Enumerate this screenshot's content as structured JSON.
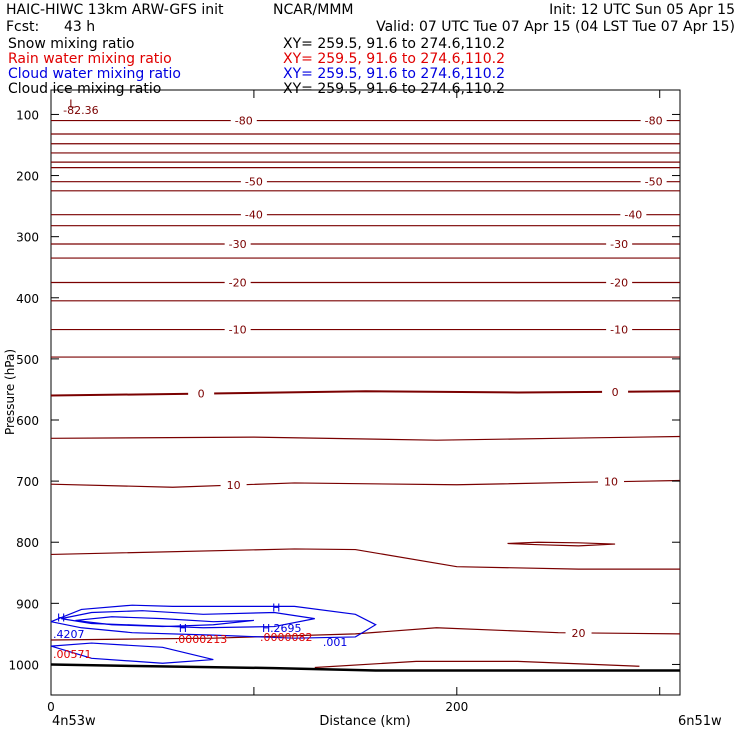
{
  "header": {
    "model": "HAIC-HIWC 13km ARW-GFS init",
    "org": "NCAR/MMM",
    "init": "Init: 12 UTC Sun 05 Apr 15",
    "fcst_label": "Fcst:",
    "fcst_value": "43 h",
    "valid": "Valid: 07 UTC Tue 07 Apr 15 (04 LST Tue 07 Apr 15)"
  },
  "fields": [
    {
      "name": "Snow mixing ratio",
      "xy": "XY= 259.5, 91.6 to 274.6,110.2",
      "color": "#000000"
    },
    {
      "name": "Rain water mixing ratio",
      "xy": "XY= 259.5, 91.6 to 274.6,110.2",
      "color": "#e00000"
    },
    {
      "name": "Cloud water mixing ratio",
      "xy": "XY= 259.5, 91.6 to 274.6,110.2",
      "color": "#0000e0"
    },
    {
      "name": "Cloud ice mixing ratio",
      "xy": "XY= 259.5, 91.6 to 274.6,110.2",
      "color": "#000000"
    }
  ],
  "colors": {
    "temperature": "#7a0000",
    "cloud_water": "#0000e0",
    "rain_water": "#e00000",
    "terrain": "#000000"
  },
  "chart_data": {
    "type": "contour",
    "xlabel": "Distance (km)",
    "ylabel": "Pressure (hPa)",
    "xlim": [
      0,
      310
    ],
    "ylim": [
      1050,
      60
    ],
    "x_ticks": [
      0,
      100,
      200,
      300
    ],
    "x_tick_labels": [
      "0",
      "",
      "200",
      ""
    ],
    "y_ticks": [
      100,
      200,
      300,
      400,
      500,
      600,
      700,
      800,
      900,
      1000
    ],
    "y_tick_labels": [
      "100",
      "200",
      "300",
      "400",
      "500",
      "600",
      "700",
      "800",
      "900",
      "1000"
    ],
    "x_start_label": "4n53w",
    "x_end_label": "6n51w",
    "temperature_isotherms": [
      {
        "value": -80,
        "x": [
          0,
          155,
          310
        ],
        "p": [
          110,
          110,
          110
        ],
        "label": "-80",
        "label_x": [
          95,
          297
        ]
      },
      {
        "value": -75,
        "x": [
          0,
          155,
          310
        ],
        "p": [
          132,
          132,
          132
        ]
      },
      {
        "value": -70,
        "x": [
          0,
          155,
          310
        ],
        "p": [
          148,
          148,
          148
        ]
      },
      {
        "value": -65,
        "x": [
          0,
          155,
          310
        ],
        "p": [
          163,
          163,
          163
        ]
      },
      {
        "value": -60,
        "x": [
          0,
          155,
          310
        ],
        "p": [
          178,
          178,
          178
        ]
      },
      {
        "value": -55,
        "x": [
          0,
          155,
          310
        ],
        "p": [
          187,
          187,
          187
        ]
      },
      {
        "value": -50,
        "x": [
          0,
          155,
          310
        ],
        "p": [
          210,
          210,
          210
        ],
        "label": "-50",
        "label_x": [
          100,
          297
        ]
      },
      {
        "value": -45,
        "x": [
          0,
          155,
          310
        ],
        "p": [
          225,
          225,
          225
        ]
      },
      {
        "value": -40,
        "x": [
          0,
          155,
          310
        ],
        "p": [
          264,
          264,
          264
        ],
        "label": "-40",
        "label_x": [
          100,
          287
        ]
      },
      {
        "value": -35,
        "x": [
          0,
          155,
          310
        ],
        "p": [
          282,
          282,
          282
        ]
      },
      {
        "value": -30,
        "x": [
          0,
          155,
          310
        ],
        "p": [
          312,
          312,
          312
        ],
        "label": "-30",
        "label_x": [
          92,
          280
        ]
      },
      {
        "value": -25,
        "x": [
          0,
          155,
          310
        ],
        "p": [
          335,
          335,
          335
        ]
      },
      {
        "value": -20,
        "x": [
          0,
          155,
          310
        ],
        "p": [
          375,
          375,
          375
        ],
        "label": "-20",
        "label_x": [
          92,
          280
        ]
      },
      {
        "value": -15,
        "x": [
          0,
          155,
          310
        ],
        "p": [
          405,
          405,
          405
        ]
      },
      {
        "value": -10,
        "x": [
          0,
          155,
          310
        ],
        "p": [
          452,
          452,
          452
        ],
        "label": "-10",
        "label_x": [
          92,
          280
        ]
      },
      {
        "value": -5,
        "x": [
          0,
          155,
          310
        ],
        "p": [
          497,
          497,
          497
        ]
      },
      {
        "value": 0,
        "x": [
          0,
          70,
          155,
          230,
          310
        ],
        "p": [
          560,
          557,
          553,
          555,
          553
        ],
        "label": "0",
        "label_x": [
          74,
          278
        ],
        "bold": true
      },
      {
        "value": 5,
        "x": [
          0,
          100,
          190,
          250,
          310
        ],
        "p": [
          630,
          628,
          633,
          630,
          627
        ]
      },
      {
        "value": 10,
        "x": [
          0,
          60,
          120,
          200,
          260,
          310
        ],
        "p": [
          705,
          710,
          703,
          706,
          702,
          699
        ],
        "label": "10",
        "label_x": [
          90,
          276
        ]
      },
      {
        "value": 15,
        "x": [
          0,
          120,
          150,
          200,
          260,
          310
        ],
        "p": [
          820,
          811,
          812,
          840,
          844,
          844
        ]
      },
      {
        "value": 20,
        "x": [
          0,
          80,
          150,
          190,
          250,
          310
        ],
        "p": [
          960,
          957,
          950,
          940,
          948,
          950
        ],
        "label": "20",
        "label_x": [
          260
        ]
      },
      {
        "value": 25,
        "x": [
          130,
          180,
          230,
          290
        ],
        "p": [
          1005,
          995,
          995,
          1003
        ]
      },
      {
        "value": 10,
        "x": [
          225,
          240,
          260,
          278,
          260,
          240,
          225
        ],
        "p": [
          802,
          800,
          801,
          803,
          806,
          804,
          802
        ]
      }
    ],
    "terrain": {
      "x": [
        0,
        50,
        110,
        160,
        220,
        310
      ],
      "p": [
        1000,
        1003,
        1006,
        1010,
        1010,
        1010
      ]
    },
    "cloud_water": [
      {
        "x": [
          0,
          15,
          40,
          60,
          120,
          150,
          160,
          150,
          120,
          80,
          40,
          15,
          0
        ],
        "p": [
          930,
          910,
          903,
          905,
          905,
          918,
          935,
          955,
          957,
          952,
          948,
          940,
          930
        ]
      },
      {
        "x": [
          5,
          20,
          45,
          75,
          110,
          130,
          110,
          75,
          45,
          20,
          5
        ],
        "p": [
          925,
          915,
          912,
          918,
          915,
          925,
          938,
          940,
          936,
          933,
          925
        ]
      },
      {
        "x": [
          12,
          30,
          55,
          80,
          100,
          80,
          55,
          30,
          12
        ],
        "p": [
          928,
          922,
          925,
          930,
          928,
          935,
          938,
          935,
          928
        ]
      },
      {
        "x": [
          0,
          20,
          55,
          80,
          55,
          20,
          0
        ],
        "p": [
          970,
          965,
          972,
          992,
          998,
          990,
          970
        ]
      }
    ],
    "annotations": [
      {
        "text": "L",
        "x": 8,
        "p": 82,
        "color": "#7a0000"
      },
      {
        "text": "-82.36",
        "x": 5,
        "p": 93,
        "color": "#7a0000"
      },
      {
        "text": "H",
        "x": 2,
        "p": 923,
        "color": "#0000e0"
      },
      {
        "text": ".4207",
        "x": 0,
        "p": 950,
        "color": "#0000e0"
      },
      {
        "text": ".00571",
        "x": 0,
        "p": 983,
        "color": "#e00000"
      },
      {
        "text": "H",
        "x": 62,
        "p": 940,
        "color": "#0000e0"
      },
      {
        "text": ".0000213",
        "x": 60,
        "p": 958,
        "color": "#e00000"
      },
      {
        "text": "H",
        "x": 108,
        "p": 907,
        "color": "#0000e0"
      },
      {
        "text": "H.2695",
        "x": 103,
        "p": 940,
        "color": "#0000e0"
      },
      {
        "text": ".0000082",
        "x": 102,
        "p": 955,
        "color": "#e00000"
      },
      {
        "text": ".001",
        "x": 133,
        "p": 963,
        "color": "#0000e0"
      }
    ]
  }
}
